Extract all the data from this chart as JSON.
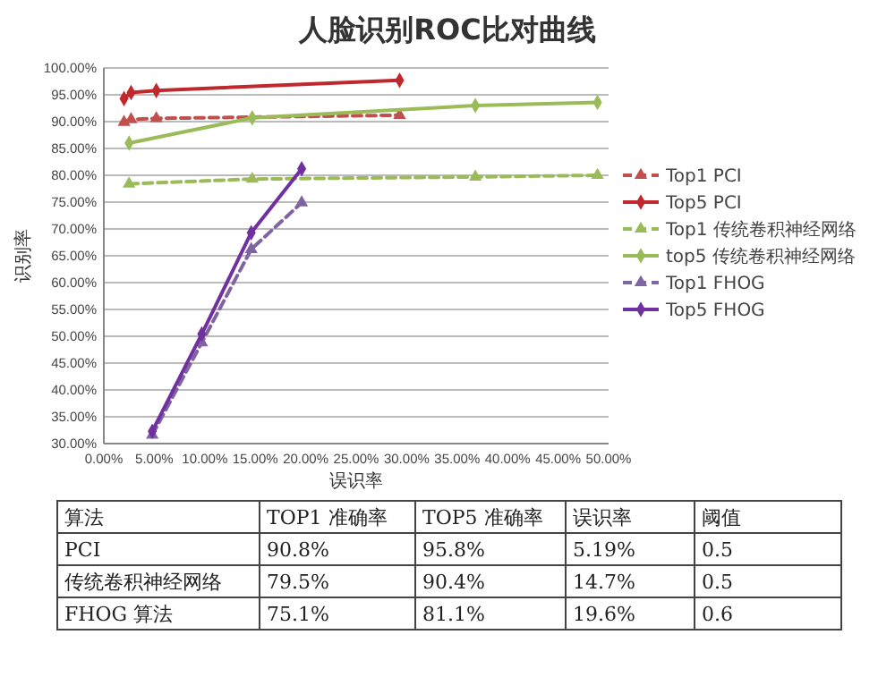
{
  "chart_data": [
    {
      "type": "line",
      "title": "人脸识别ROC比对曲线",
      "xlabel": "误识率",
      "ylabel": "识别率",
      "xlim": [
        0,
        50
      ],
      "xticks": [
        {
          "value": 0,
          "label": "0.00%"
        },
        {
          "value": 5,
          "label": "5.00%"
        },
        {
          "value": 10,
          "label": "10.00%"
        },
        {
          "value": 15,
          "label": "15.00%"
        },
        {
          "value": 20,
          "label": "20.00%"
        },
        {
          "value": 25,
          "label": "25.00%"
        },
        {
          "value": 30,
          "label": "30.00%"
        },
        {
          "value": 35,
          "label": "35.00%"
        },
        {
          "value": 40,
          "label": "40.00%"
        },
        {
          "value": 45,
          "label": "45.00%"
        },
        {
          "value": 50,
          "label": "50.00%"
        }
      ],
      "ylim": [
        30,
        100
      ],
      "yticks": [
        {
          "value": 30,
          "label": "30.00%"
        },
        {
          "value": 35,
          "label": "35.00%"
        },
        {
          "value": 40,
          "label": "40.00%"
        },
        {
          "value": 45,
          "label": "45.00%"
        },
        {
          "value": 50,
          "label": "50.00%"
        },
        {
          "value": 55,
          "label": "55.00%"
        },
        {
          "value": 60,
          "label": "60.00%"
        },
        {
          "value": 65,
          "label": "65.00%"
        },
        {
          "value": 70,
          "label": "70.00%"
        },
        {
          "value": 75,
          "label": "75.00%"
        },
        {
          "value": 80,
          "label": "80.00%"
        },
        {
          "value": 85,
          "label": "85.00%"
        },
        {
          "value": 90,
          "label": "90.00%"
        },
        {
          "value": 95,
          "label": "95.00%"
        },
        {
          "value": 100,
          "label": "100.00%"
        }
      ],
      "grid": "y",
      "legend": "right",
      "series": [
        {
          "name": "Top1 PCI",
          "color": "#c0504d",
          "line_style": "dashed",
          "marker": "triangle",
          "x": [
            2,
            2.7,
            5.2,
            29.3
          ],
          "values": [
            89.9,
            90.4,
            90.6,
            91.2
          ]
        },
        {
          "name": "Top5 PCI",
          "color": "#c0282d",
          "line_style": "solid",
          "marker": "diamond",
          "x": [
            2,
            2.7,
            5.2,
            29.3
          ],
          "values": [
            94.3,
            95.4,
            95.8,
            97.7
          ]
        },
        {
          "name": "Top1 传统卷积神经网络",
          "color": "#9bbb59",
          "line_style": "dashed",
          "marker": "triangle",
          "x": [
            2.5,
            14.7,
            36.8,
            48.9
          ],
          "values": [
            78.4,
            79.3,
            79.7,
            80
          ]
        },
        {
          "name": "top5 传统卷积神经网络",
          "color": "#9bbb59",
          "line_style": "solid",
          "marker": "diamond",
          "x": [
            2.5,
            14.7,
            36.8,
            48.9
          ],
          "values": [
            86,
            90.7,
            93,
            93.6
          ]
        },
        {
          "name": "Top1 FHOG",
          "color": "#8064a2",
          "line_style": "dashed",
          "marker": "triangle",
          "x": [
            4.8,
            9.7,
            14.6,
            19.6
          ],
          "values": [
            31.6,
            48.8,
            66.2,
            74.9
          ]
        },
        {
          "name": "Top5 FHOG",
          "color": "#7030a0",
          "line_style": "solid",
          "marker": "diamond",
          "x": [
            4.8,
            9.7,
            14.6,
            19.6
          ],
          "values": [
            32.3,
            50.4,
            69.3,
            81.2
          ]
        }
      ]
    },
    {
      "type": "other",
      "categories": [
        "算法",
        "TOP1 准确率",
        "TOP5 准确率",
        "误识率",
        "阈值"
      ],
      "annotations": [
        "PCI",
        "90.8%",
        "95.8%",
        "5.19%",
        "0.5",
        "传统卷积神经网络",
        "79.5%",
        "90.4%",
        "14.7%",
        "0.5",
        "FHOG 算法",
        "75.1%",
        "81.1%",
        "19.6%",
        "0.6"
      ]
    }
  ]
}
